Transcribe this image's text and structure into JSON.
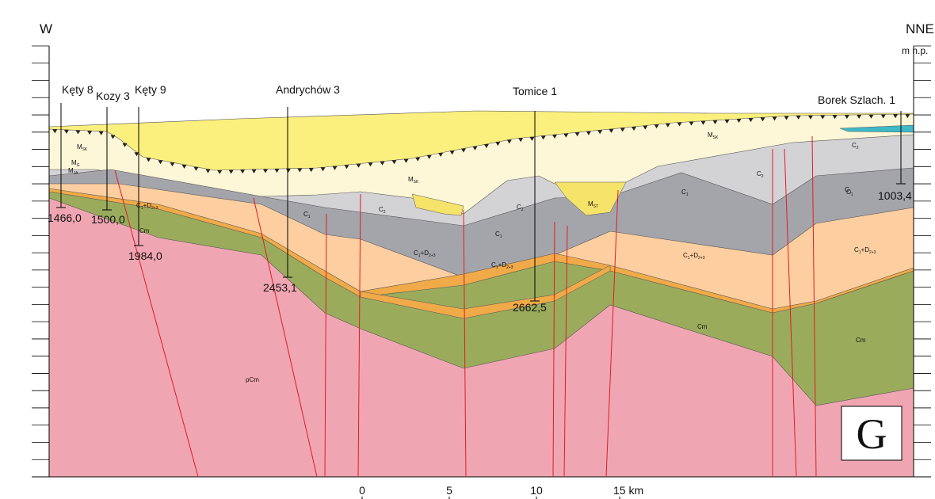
{
  "header": {
    "west": "W",
    "east": "NNE",
    "unit": "m n.p."
  },
  "wells": [
    {
      "name": "Kęty 8",
      "depth": "1466,0"
    },
    {
      "name": "Kozy 3",
      "depth": "1500,0"
    },
    {
      "name": "Kęty 9",
      "depth": "1984,0"
    },
    {
      "name": "Andrychów 3",
      "depth": "2453,1"
    },
    {
      "name": "Tomice 1",
      "depth": "2662,5"
    },
    {
      "name": "Borek Szlach. 1",
      "depth": "1003,4"
    }
  ],
  "units": [
    {
      "parts": [
        "M",
        "SK"
      ]
    },
    {
      "parts": [
        "M",
        "SK"
      ]
    },
    {
      "parts": [
        "M",
        "SK"
      ]
    },
    {
      "parts": [
        "M",
        "G"
      ]
    },
    {
      "parts": [
        "M",
        "JA"
      ]
    },
    {
      "parts": [
        "C",
        "1",
        "+D",
        "2+3"
      ]
    },
    {
      "parts": [
        "Cm"
      ]
    },
    {
      "parts": [
        "C",
        "1"
      ]
    },
    {
      "parts": [
        "C",
        "2"
      ]
    },
    {
      "parts": [
        "C",
        "1"
      ]
    },
    {
      "parts": [
        "C",
        "1"
      ]
    },
    {
      "parts": [
        "C",
        "1",
        "+D",
        "2+3"
      ]
    },
    {
      "parts": [
        "C",
        "1",
        "+D",
        "2+3"
      ]
    },
    {
      "parts": [
        "C",
        "2"
      ]
    },
    {
      "parts": [
        "M",
        "ST"
      ]
    },
    {
      "parts": [
        "C",
        "1"
      ]
    },
    {
      "parts": [
        "C",
        "2"
      ]
    },
    {
      "parts": [
        "C",
        "1",
        "+D",
        "2+3"
      ]
    },
    {
      "parts": [
        "Cm"
      ]
    },
    {
      "parts": [
        "C",
        "2"
      ]
    },
    {
      "parts": [
        "C",
        "1"
      ]
    },
    {
      "parts": [
        "C",
        "1",
        "+D",
        "2+3"
      ]
    },
    {
      "parts": [
        "Cm"
      ]
    },
    {
      "parts": [
        "pCm"
      ]
    }
  ],
  "scale": [
    "0",
    "5",
    "10",
    "15 km"
  ],
  "panel": "G"
}
